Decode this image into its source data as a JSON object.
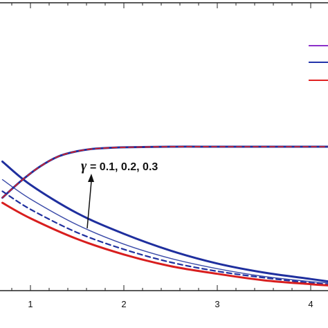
{
  "chart_data": {
    "type": "line",
    "title": "",
    "xlabel": "",
    "ylabel": "",
    "xlim": [
      0.7,
      4.2
    ],
    "ylim": [
      0,
      1.6
    ],
    "x_ticks": [
      "1",
      "2",
      "3",
      "4"
    ],
    "annotation": {
      "symbol": "γ",
      "text": "= 0.1, 0.2, 0.3"
    },
    "legend": {
      "position": "top-right",
      "colors": [
        "#8b2fc9",
        "#2233aa",
        "#e02020"
      ]
    },
    "series": [
      {
        "color": "#1f2f9e",
        "style": "solid",
        "width": 3,
        "x": [
          0.7,
          1.0,
          1.5,
          2.0,
          2.5,
          3.0,
          3.5,
          4.0,
          4.2
        ],
        "y": [
          1.0,
          0.82,
          0.6,
          0.44,
          0.31,
          0.21,
          0.14,
          0.09,
          0.07
        ]
      },
      {
        "color": "#3a4aa8",
        "style": "solid",
        "width": 1.4,
        "x": [
          0.7,
          1.0,
          1.5,
          2.0,
          2.5,
          3.0,
          3.5,
          4.0,
          4.2
        ],
        "y": [
          0.86,
          0.71,
          0.51,
          0.36,
          0.25,
          0.17,
          0.11,
          0.07,
          0.06
        ]
      },
      {
        "color": "#1f2f9e",
        "style": "dashed",
        "width": 2.2,
        "x": [
          0.7,
          1.0,
          1.5,
          2.0,
          2.5,
          3.0,
          3.5,
          4.0,
          4.2
        ],
        "y": [
          0.77,
          0.63,
          0.45,
          0.32,
          0.22,
          0.15,
          0.1,
          0.06,
          0.05
        ]
      },
      {
        "color": "#d81e1e",
        "style": "solid",
        "width": 3,
        "x": [
          0.7,
          1.0,
          1.5,
          2.0,
          2.5,
          3.0,
          3.5,
          4.0,
          4.2
        ],
        "y": [
          0.68,
          0.56,
          0.4,
          0.28,
          0.19,
          0.13,
          0.08,
          0.05,
          0.04
        ]
      },
      {
        "color": "#1f2f9e",
        "style": "solid",
        "width": 3,
        "x": [
          0.7,
          0.9,
          1.1,
          1.3,
          1.5,
          1.7,
          2.0,
          2.5,
          3.0,
          3.5,
          4.0,
          4.2
        ],
        "y": [
          0.72,
          0.85,
          0.96,
          1.04,
          1.08,
          1.1,
          1.11,
          1.115,
          1.115,
          1.115,
          1.115,
          1.115
        ]
      },
      {
        "color": "#e02020",
        "style": "dashed",
        "width": 1.6,
        "x": [
          0.7,
          0.9,
          1.1,
          1.3,
          1.5,
          1.7,
          2.0,
          2.5,
          3.0,
          3.5,
          4.0,
          4.2
        ],
        "y": [
          0.72,
          0.85,
          0.96,
          1.04,
          1.08,
          1.1,
          1.11,
          1.115,
          1.115,
          1.115,
          1.115,
          1.115
        ]
      }
    ]
  }
}
